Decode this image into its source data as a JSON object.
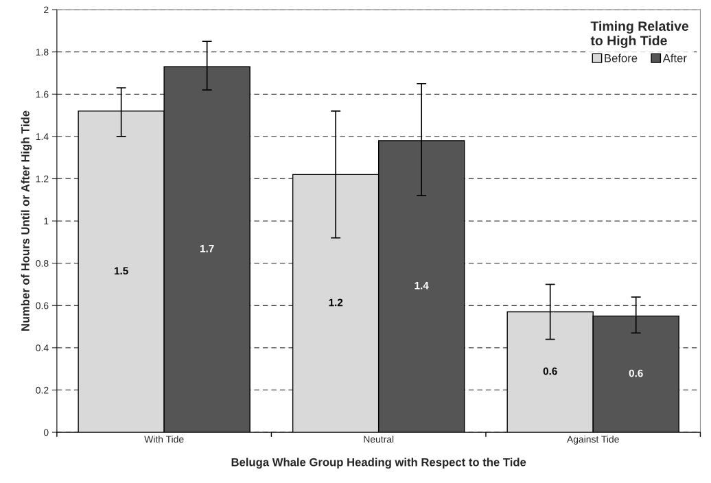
{
  "chart_data": {
    "type": "bar",
    "xlabel": "Beluga Whale Group Heading with Respect to the Tide",
    "ylabel": "Number of Hours Until or After High Tide",
    "legend_title": "Timing Relative\nto High Tide",
    "categories": [
      "With Tide",
      "Neutral",
      "Against Tide"
    ],
    "series": [
      {
        "name": "Before",
        "color": "#d9d9d9",
        "values": [
          1.52,
          1.22,
          0.57
        ],
        "errors": [
          [
            1.4,
            1.63
          ],
          [
            0.92,
            1.52
          ],
          [
            0.44,
            0.7
          ]
        ],
        "value_labels": [
          "1.5",
          "1.2",
          "0.6"
        ]
      },
      {
        "name": "After",
        "color": "#555555",
        "values": [
          1.73,
          1.38,
          0.55
        ],
        "errors": [
          [
            1.62,
            1.85
          ],
          [
            1.12,
            1.65
          ],
          [
            0.47,
            0.64
          ]
        ],
        "value_labels": [
          "1.7",
          "1.4",
          "0.6"
        ]
      }
    ],
    "ylim": [
      0,
      2
    ],
    "yticks": [
      0,
      {
        "value": 0.2,
        "label": "0.2"
      },
      {
        "value": 0.4,
        "label": "0.4"
      },
      {
        "value": 0.6,
        "label": "0.6"
      },
      {
        "value": 0.8,
        "label": "0.8"
      },
      1,
      {
        "value": 1.2,
        "label": "1.2"
      },
      {
        "value": 1.4,
        "label": "1.4"
      },
      {
        "value": 1.6,
        "label": "1.6"
      },
      {
        "value": 1.8,
        "label": "1.8"
      },
      2
    ],
    "grid": "y",
    "legend": "top right"
  }
}
